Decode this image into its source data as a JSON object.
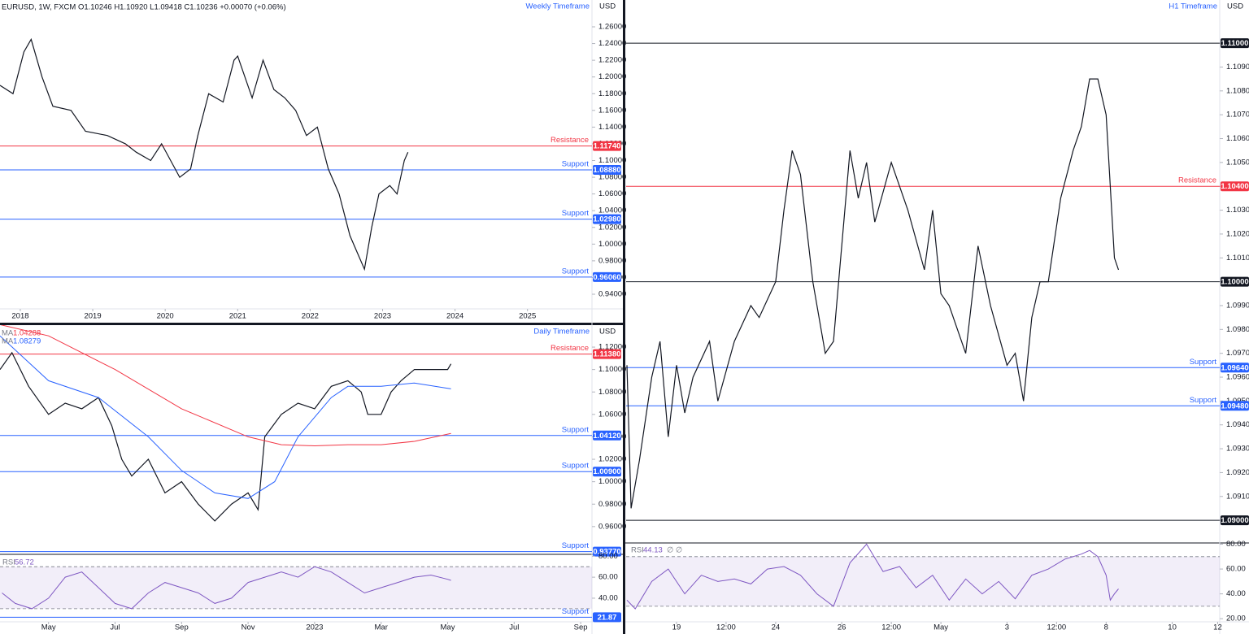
{
  "chart_data": [
    {
      "type": "line",
      "header": "EURUSD, 1W, FXCM  O1.10246  H1.10920  L1.09418  C1.10236  +0.00070 (+0.06%)",
      "title": "Weekly Timeframe",
      "axis_label": "USD",
      "xlim": [
        2017.72,
        2025.89
      ],
      "xticks": [
        2018,
        2019,
        2020,
        2021,
        2022,
        2023,
        2024,
        2025
      ],
      "ylim": [
        0.9225,
        1.2921
      ],
      "yticks": [
        {
          "value": 0.94,
          "label": "0.94000"
        },
        {
          "value": 0.96,
          "label": "0.96000"
        },
        {
          "value": 0.98,
          "label": "0.98000"
        },
        {
          "value": 1.0,
          "label": "1.00000"
        },
        {
          "value": 1.02,
          "label": "1.02000"
        },
        {
          "value": 1.04,
          "label": "1.04000"
        },
        {
          "value": 1.06,
          "label": "1.06000"
        },
        {
          "value": 1.08,
          "label": "1.08000"
        },
        {
          "value": 1.1,
          "label": "1.10000"
        },
        {
          "value": 1.12,
          "label": "1.12000"
        },
        {
          "value": 1.14,
          "label": "1.14000"
        },
        {
          "value": 1.16,
          "label": "1.16000"
        },
        {
          "value": 1.18,
          "label": "1.18000"
        },
        {
          "value": 1.2,
          "label": "1.20000"
        },
        {
          "value": 1.22,
          "label": "1.22000"
        },
        {
          "value": 1.24,
          "label": "1.24000"
        },
        {
          "value": 1.26,
          "label": "1.26000"
        }
      ],
      "series": [
        {
          "color": "#131722",
          "x": [
            2017.72,
            2017.9,
            2018.05,
            2018.15,
            2018.3,
            2018.45,
            2018.7,
            2018.9,
            2019.2,
            2019.45,
            2019.6,
            2019.8,
            2019.95,
            2020.2,
            2020.35,
            2020.45,
            2020.6,
            2020.8,
            2020.95,
            2021.0,
            2021.2,
            2021.35,
            2021.5,
            2021.65,
            2021.8,
            2021.95,
            2022.1,
            2022.25,
            2022.4,
            2022.55,
            2022.65,
            2022.75,
            2022.85,
            2022.95,
            2023.1,
            2023.2,
            2023.3,
            2023.35
          ],
          "values": [
            1.19,
            1.18,
            1.23,
            1.245,
            1.2,
            1.165,
            1.16,
            1.135,
            1.13,
            1.12,
            1.11,
            1.1,
            1.12,
            1.08,
            1.09,
            1.13,
            1.18,
            1.17,
            1.22,
            1.225,
            1.175,
            1.22,
            1.185,
            1.175,
            1.16,
            1.13,
            1.14,
            1.09,
            1.06,
            1.01,
            0.99,
            0.97,
            1.02,
            1.06,
            1.07,
            1.06,
            1.1,
            1.11
          ]
        }
      ],
      "levels": [
        {
          "name": "Resistance",
          "color": "#f23645",
          "value": {
            "value": 1.1174,
            "label": "1.11740"
          }
        },
        {
          "name": "Support",
          "color": "#2962ff",
          "value": {
            "value": 1.0888,
            "label": "1.08880"
          }
        },
        {
          "name": "Support",
          "color": "#2962ff",
          "value": {
            "value": 1.0298,
            "label": "1.02980"
          }
        },
        {
          "name": "Support",
          "color": "#2962ff",
          "value": {
            "value": 0.9606,
            "label": "0.96060"
          }
        }
      ]
    },
    {
      "type": "line",
      "title": "Daily Timeframe",
      "axis_label": "USD",
      "xlim": [
        -1.46,
        16.34
      ],
      "ylim": [
        0.9367,
        1.1396
      ],
      "yticks": [
        {
          "value": 0.96,
          "label": "0.96000"
        },
        {
          "value": 0.98,
          "label": "0.98000"
        },
        {
          "value": 1.0,
          "label": "1.00000"
        },
        {
          "value": 1.02,
          "label": "1.02000"
        },
        {
          "value": 1.04,
          "label": "1.04000"
        },
        {
          "value": 1.06,
          "label": "1.06000"
        },
        {
          "value": 1.08,
          "label": "1.08000"
        },
        {
          "value": 1.1,
          "label": "1.10000"
        },
        {
          "value": 1.12,
          "label": "1.12000"
        }
      ],
      "series": [
        {
          "color": "#131722",
          "x": [
            -1.46,
            -1.1,
            -0.6,
            0,
            0.5,
            1,
            1.5,
            1.9,
            2.2,
            2.5,
            3,
            3.5,
            4,
            4.5,
            5,
            5.5,
            6,
            6.3,
            6.5,
            7,
            7.5,
            8,
            8.5,
            9,
            9.4,
            9.6,
            10,
            10.3,
            10.6,
            11,
            11.5,
            12,
            12.1
          ],
          "values": [
            1.1,
            1.115,
            1.085,
            1.06,
            1.07,
            1.065,
            1.075,
            1.05,
            1.02,
            1.005,
            1.02,
            0.99,
            1.0,
            0.98,
            0.965,
            0.98,
            0.99,
            0.975,
            1.04,
            1.06,
            1.07,
            1.065,
            1.085,
            1.09,
            1.08,
            1.06,
            1.06,
            1.08,
            1.09,
            1.1,
            1.1,
            1.1,
            1.105
          ]
        },
        {
          "name": "MA",
          "color": "#f23645",
          "last": {
            "value": 1.04288,
            "label": "1.04288"
          },
          "x": [
            -1.46,
            0,
            2,
            4,
            6,
            7,
            8,
            9,
            10,
            11,
            12.1
          ],
          "values": [
            1.14,
            1.13,
            1.1,
            1.065,
            1.04,
            1.033,
            1.032,
            1.033,
            1.033,
            1.036,
            1.043
          ]
        },
        {
          "name": "MA",
          "color": "#2962ff",
          "last": {
            "value": 1.08279,
            "label": "1.08279"
          },
          "x": [
            -1.46,
            0,
            1.5,
            3,
            4,
            5,
            6,
            6.8,
            7.5,
            8.5,
            9,
            10,
            11,
            12.1
          ],
          "values": [
            1.13,
            1.09,
            1.075,
            1.04,
            1.01,
            0.99,
            0.985,
            1.0,
            1.04,
            1.075,
            1.085,
            1.085,
            1.088,
            1.0828
          ]
        }
      ],
      "levels": [
        {
          "name": "Resistance",
          "color": "#f23645",
          "value": {
            "value": 1.1138,
            "label": "1.11380"
          }
        },
        {
          "name": "Support",
          "color": "#2962ff",
          "value": {
            "value": 1.0412,
            "label": "1.04120"
          }
        },
        {
          "name": "Support",
          "color": "#2962ff",
          "value": {
            "value": 1.009,
            "label": "1.00900"
          }
        },
        {
          "name": "Support",
          "color": "#2962ff",
          "value": {
            "value": 0.9377,
            "label": "0.93770"
          }
        }
      ]
    },
    {
      "type": "line",
      "title": "RSI",
      "last": {
        "value": 56.72,
        "label": "56.72"
      },
      "xlim": [
        -1.46,
        16.34
      ],
      "ylim": [
        17.5,
        81
      ],
      "bands": [
        30,
        70
      ],
      "xticks": [
        {
          "value": 0,
          "label": "May"
        },
        {
          "value": 2,
          "label": "Jul"
        },
        {
          "value": 4,
          "label": "Sep"
        },
        {
          "value": 6,
          "label": "Nov"
        },
        {
          "value": 8,
          "label": "2023"
        },
        {
          "value": 10,
          "label": "Mar"
        },
        {
          "value": 12,
          "label": "May"
        },
        {
          "value": 14,
          "label": "Jul"
        },
        {
          "value": 16,
          "label": "Sep"
        }
      ],
      "yticks": [
        {
          "value": 40,
          "label": "40.00"
        },
        {
          "value": 60,
          "label": "60.00"
        },
        {
          "value": 80,
          "label": "80.00"
        }
      ],
      "series": [
        {
          "color": "#7e57c2",
          "x": [
            -1.4,
            -1.0,
            -0.5,
            0,
            0.5,
            1,
            1.5,
            2,
            2.5,
            3,
            3.5,
            4,
            4.5,
            5,
            5.5,
            6,
            6.5,
            7,
            7.5,
            8,
            8.5,
            9,
            9.5,
            10,
            10.5,
            11,
            11.5,
            12,
            12.1
          ],
          "values": [
            45,
            35,
            30,
            40,
            60,
            65,
            50,
            35,
            30,
            45,
            55,
            50,
            45,
            35,
            40,
            55,
            60,
            65,
            60,
            70,
            65,
            55,
            45,
            50,
            55,
            60,
            62,
            58,
            57
          ]
        }
      ],
      "levels": [
        {
          "name": "Support",
          "color": "#2962ff",
          "value": {
            "value": 21.87,
            "label": "21.87"
          }
        }
      ]
    },
    {
      "type": "line",
      "title": "H1 Timeframe",
      "axis_label": "USD",
      "xlim": [
        -12.2,
        131.5
      ],
      "ylim": [
        1.08905,
        1.11181
      ],
      "yticks": [
        {
          "value": 1.09,
          "label": "1.09000"
        },
        {
          "value": 1.091,
          "label": "1.09100"
        },
        {
          "value": 1.092,
          "label": "1.09200"
        },
        {
          "value": 1.093,
          "label": "1.09300"
        },
        {
          "value": 1.094,
          "label": "1.09400"
        },
        {
          "value": 1.095,
          "label": "1.09500"
        },
        {
          "value": 1.096,
          "label": "1.09600"
        },
        {
          "value": 1.097,
          "label": "1.09700"
        },
        {
          "value": 1.098,
          "label": "1.09800"
        },
        {
          "value": 1.099,
          "label": "1.09900"
        },
        {
          "value": 1.1,
          "label": "1.10000"
        },
        {
          "value": 1.101,
          "label": "1.10100"
        },
        {
          "value": 1.102,
          "label": "1.10200"
        },
        {
          "value": 1.103,
          "label": "1.10300"
        },
        {
          "value": 1.104,
          "label": "1.10400"
        },
        {
          "value": 1.105,
          "label": "1.10500"
        },
        {
          "value": 1.106,
          "label": "1.10600"
        },
        {
          "value": 1.107,
          "label": "1.10700"
        },
        {
          "value": 1.108,
          "label": "1.10800"
        },
        {
          "value": 1.109,
          "label": "1.10900"
        },
        {
          "value": 1.11,
          "label": "1.11000"
        }
      ],
      "series": [
        {
          "color": "#131722",
          "x": [
            -12,
            -11,
            -9,
            -6,
            -4,
            -2,
            0,
            2,
            4,
            8,
            10,
            14,
            18,
            20,
            24,
            26,
            28,
            30,
            33,
            36,
            38,
            42,
            44,
            46,
            48,
            52,
            56,
            60,
            62,
            64,
            66,
            70,
            73,
            76,
            80,
            82,
            84,
            86,
            88,
            90,
            93,
            96,
            98,
            100,
            102,
            104,
            105,
            106,
            107
          ],
          "values": [
            1.0965,
            1.0905,
            1.0925,
            1.096,
            1.0975,
            1.0935,
            1.0965,
            1.0945,
            1.096,
            1.0975,
            1.095,
            1.0975,
            1.099,
            1.0985,
            1.1,
            1.103,
            1.1055,
            1.1045,
            1.1,
            1.097,
            1.0975,
            1.1055,
            1.1035,
            1.105,
            1.1025,
            1.105,
            1.103,
            1.1005,
            1.103,
            1.0995,
            1.099,
            1.097,
            1.1015,
            1.099,
            1.0965,
            1.097,
            1.095,
            1.0985,
            1.1,
            1.1,
            1.1035,
            1.1055,
            1.1065,
            1.1085,
            1.1085,
            1.107,
            1.104,
            1.101,
            1.1005
          ]
        }
      ],
      "levels": [
        {
          "color": "#131722",
          "value": {
            "value": 1.11,
            "label": "1.11000"
          }
        },
        {
          "name": "Resistance",
          "color": "#f23645",
          "value": {
            "value": 1.104,
            "label": "1.10400"
          }
        },
        {
          "color": "#131722",
          "value": {
            "value": 1.1,
            "label": "1.10000"
          }
        },
        {
          "name": "Support",
          "color": "#2962ff",
          "value": {
            "value": 1.0964,
            "label": "1.09640"
          }
        },
        {
          "name": "Support",
          "color": "#2962ff",
          "value": {
            "value": 1.0948,
            "label": "1.09480"
          }
        },
        {
          "color": "#131722",
          "value": {
            "value": 1.09,
            "label": "1.09000"
          }
        }
      ]
    },
    {
      "type": "line",
      "title": "RSI",
      "last": {
        "value": 44.13,
        "label": "44.13"
      },
      "suffix": "∅ ∅",
      "xlim": [
        -12.2,
        131.5
      ],
      "ylim": [
        17.5,
        81
      ],
      "bands": [
        30,
        70
      ],
      "xticks": [
        {
          "value": 0,
          "label": "19"
        },
        {
          "value": 12,
          "label": "12:00"
        },
        {
          "value": 24,
          "label": "24"
        },
        {
          "value": 40,
          "label": "26"
        },
        {
          "value": 52,
          "label": "12:00"
        },
        {
          "value": 64,
          "label": "May"
        },
        {
          "value": 80,
          "label": "3"
        },
        {
          "value": 92,
          "label": "12:00"
        },
        {
          "value": 104,
          "label": "8"
        },
        {
          "value": 120,
          "label": "10"
        },
        {
          "value": 131,
          "label": "12"
        }
      ],
      "yticks": [
        {
          "value": 20,
          "label": "20.00"
        },
        {
          "value": 40,
          "label": "40.00"
        },
        {
          "value": 60,
          "label": "60.00"
        },
        {
          "value": 80,
          "label": "80.00"
        }
      ],
      "series": [
        {
          "color": "#7e57c2",
          "x": [
            -12,
            -10,
            -6,
            -2,
            2,
            6,
            10,
            14,
            18,
            22,
            26,
            30,
            34,
            38,
            42,
            46,
            50,
            54,
            58,
            62,
            66,
            70,
            74,
            78,
            82,
            86,
            90,
            94,
            98,
            100,
            102,
            104,
            105,
            106,
            107
          ],
          "values": [
            35,
            28,
            50,
            60,
            40,
            55,
            50,
            52,
            48,
            60,
            62,
            55,
            40,
            30,
            65,
            80,
            58,
            62,
            45,
            55,
            35,
            52,
            40,
            50,
            36,
            55,
            60,
            68,
            72,
            75,
            70,
            55,
            35,
            40,
            44
          ]
        }
      ]
    }
  ]
}
